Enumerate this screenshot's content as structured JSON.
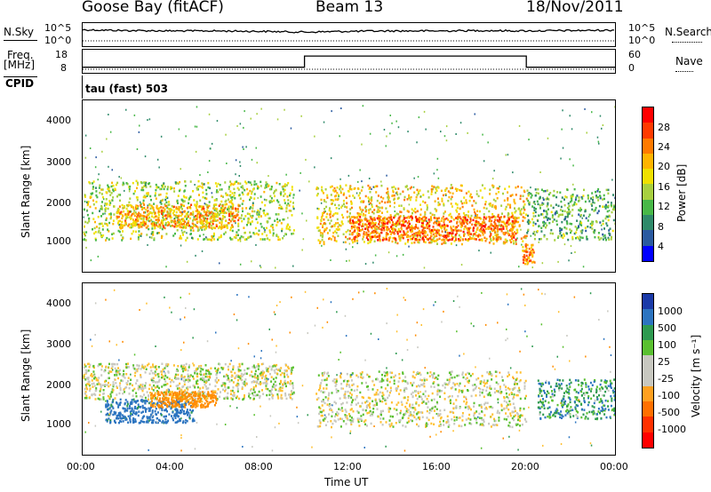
{
  "header": {
    "station": "Goose Bay (fitACF)",
    "beam": "Beam 13",
    "date": "18/Nov/2011",
    "nsky_label": "N.Sky",
    "nsearch_label": "N.Search",
    "freq_label_line1": "Freq.",
    "freq_label_line2": "[MHz]",
    "nave_label": "Nave",
    "cpid_label": "CPID",
    "cpid_value": "tau (fast) 503",
    "noise_ticks_left": [
      "10^5",
      "10^0"
    ],
    "noise_ticks_right": [
      "10^5",
      "10^0"
    ],
    "freq_ticks_left": [
      "18",
      "8"
    ],
    "nave_ticks_right": [
      "60",
      "0"
    ]
  },
  "xaxis": {
    "label": "Time UT",
    "ticks": [
      "00:00",
      "04:00",
      "08:00",
      "12:00",
      "16:00",
      "20:00",
      "00:00"
    ]
  },
  "power_panel": {
    "ylabel": "Slant Range [km]",
    "yticks": [
      "4000",
      "3000",
      "2000",
      "1000"
    ],
    "colorbar_label": "Power [dB]",
    "colorbar_ticks": [
      "28",
      "24",
      "20",
      "16",
      "12",
      "8",
      "4"
    ],
    "colors": [
      "#ff0000",
      "#ff3a00",
      "#ff7a00",
      "#ffb400",
      "#f0e000",
      "#a8d040",
      "#48b848",
      "#2f8a6a",
      "#2a5aa0",
      "#0000ff"
    ]
  },
  "velocity_panel": {
    "ylabel": "Slant Range [km]",
    "yticks": [
      "4000",
      "3000",
      "2000",
      "1000"
    ],
    "colorbar_label": "Velocity [m s⁻¹]",
    "colorbar_ticks": [
      "1000",
      "500",
      "100",
      "25",
      "-25",
      "-100",
      "-500",
      "-1000"
    ],
    "colors": [
      "#1a3aa8",
      "#2c74c0",
      "#2e9a50",
      "#5ac030",
      "#c8c8c0",
      "#c8c8c0",
      "#ffa020",
      "#ff7000",
      "#ff3000",
      "#ff0000"
    ]
  },
  "chart_data": [
    {
      "type": "line",
      "name": "noise panel",
      "x_range_hours": [
        0,
        24
      ],
      "series": [
        {
          "name": "N.Sky",
          "note": "approx log10 noise",
          "x": [
            0,
            2,
            4,
            6,
            8,
            10,
            12,
            14,
            16,
            18,
            20,
            22,
            24
          ],
          "values": [
            4.2,
            4.0,
            3.9,
            3.9,
            3.8,
            3.6,
            3.8,
            3.9,
            3.9,
            4.0,
            3.9,
            4.0,
            4.1
          ]
        },
        {
          "name": "N.Search",
          "x": [
            0,
            24
          ],
          "values": [
            1.5,
            1.5
          ]
        }
      ]
    },
    {
      "type": "line",
      "name": "frequency panel",
      "series": [
        {
          "name": "Freq. [MHz]",
          "x": [
            0,
            10.0,
            10.0,
            20.0,
            20.0,
            24
          ],
          "values": [
            10,
            10,
            18,
            18,
            10,
            10
          ]
        },
        {
          "name": "Nave",
          "x": [
            0,
            24
          ],
          "values": [
            15,
            15
          ]
        }
      ]
    },
    {
      "type": "heatmap",
      "name": "power",
      "xlabel": "Time UT",
      "ylabel": "Slant Range [km]",
      "ylim": [
        180,
        4500
      ],
      "xlim_hours": [
        0,
        24
      ],
      "colorbar": {
        "label": "Power [dB]",
        "range": [
          0,
          30
        ]
      },
      "regions": [
        {
          "t": [
            0,
            9.5
          ],
          "range_km": [
            1000,
            2500
          ],
          "dB": 14
        },
        {
          "t": [
            1.5,
            7
          ],
          "range_km": [
            1300,
            1900
          ],
          "dB": 20
        },
        {
          "t": [
            10.5,
            20
          ],
          "range_km": [
            900,
            2400
          ],
          "dB": 18
        },
        {
          "t": [
            12,
            19.5
          ],
          "range_km": [
            1000,
            1600
          ],
          "dB": 24
        },
        {
          "t": [
            20,
            24
          ],
          "range_km": [
            1000,
            2300
          ],
          "dB": 10
        },
        {
          "t": [
            19.8,
            20.4
          ],
          "range_km": [
            400,
            900
          ],
          "dB": 22
        }
      ]
    },
    {
      "type": "heatmap",
      "name": "velocity",
      "xlabel": "Time UT",
      "ylabel": "Slant Range [km]",
      "ylim": [
        180,
        4500
      ],
      "xlim_hours": [
        0,
        24
      ],
      "colorbar": {
        "label": "Velocity [m s⁻¹]",
        "range": [
          -1000,
          1000
        ]
      },
      "regions": [
        {
          "t": [
            0,
            9.5
          ],
          "range_km": [
            1600,
            2500
          ],
          "vel": 0
        },
        {
          "t": [
            1,
            5
          ],
          "range_km": [
            1000,
            1600
          ],
          "vel": 150
        },
        {
          "t": [
            3,
            6
          ],
          "range_km": [
            1400,
            1800
          ],
          "vel": -150
        },
        {
          "t": [
            10.5,
            20
          ],
          "range_km": [
            900,
            2300
          ],
          "vel": 0
        },
        {
          "t": [
            20.5,
            24
          ],
          "range_km": [
            1100,
            2100
          ],
          "vel": 80
        }
      ]
    }
  ]
}
